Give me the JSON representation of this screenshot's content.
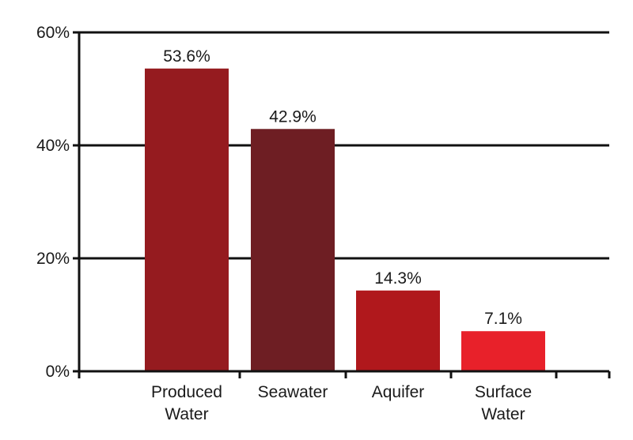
{
  "chart_data": {
    "type": "bar",
    "categories": [
      [
        "Produced",
        "Water"
      ],
      [
        "Seawater"
      ],
      [
        "Aquifer"
      ],
      [
        "Surface",
        "Water"
      ]
    ],
    "values": [
      53.6,
      42.9,
      14.3,
      7.1
    ],
    "value_labels": [
      "53.6%",
      "42.9%",
      "14.3%",
      "7.1%"
    ],
    "colors": [
      "#951b1f",
      "#6e1e23",
      "#b0181c",
      "#e8212a"
    ],
    "yticks": [
      0,
      20,
      40,
      60
    ],
    "ytick_labels": [
      "0%",
      "20%",
      "40%",
      "60%"
    ],
    "ylim": [
      0,
      60
    ],
    "grid": true,
    "legend": "none"
  }
}
